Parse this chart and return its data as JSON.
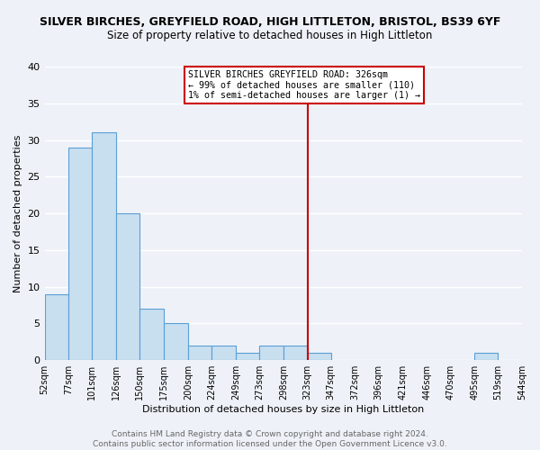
{
  "title": "SILVER BIRCHES, GREYFIELD ROAD, HIGH LITTLETON, BRISTOL, BS39 6YF",
  "subtitle": "Size of property relative to detached houses in High Littleton",
  "xlabel": "Distribution of detached houses by size in High Littleton",
  "ylabel": "Number of detached properties",
  "bin_edges": [
    52,
    77,
    101,
    126,
    150,
    175,
    200,
    224,
    249,
    273,
    298,
    323,
    347,
    372,
    396,
    421,
    446,
    470,
    495,
    519,
    544
  ],
  "bin_counts": [
    9,
    29,
    31,
    20,
    7,
    5,
    2,
    2,
    1,
    2,
    2,
    1,
    0,
    0,
    0,
    0,
    0,
    0,
    1,
    0
  ],
  "bar_color": "#c8dff0",
  "bar_edge_color": "#5a9fd4",
  "vline_x": 323,
  "vline_color": "#cc0000",
  "ylim": [
    0,
    40
  ],
  "xlim": [
    52,
    544
  ],
  "annotation_text_line1": "SILVER BIRCHES GREYFIELD ROAD: 326sqm",
  "annotation_text_line2": "← 99% of detached houses are smaller (110)",
  "annotation_text_line3": "1% of semi-detached houses are larger (1) →",
  "background_color": "#eef2f8",
  "plot_bg_color": "#eef2f8",
  "grid_color": "#ffffff",
  "footer_text": "Contains HM Land Registry data © Crown copyright and database right 2024.\nContains public sector information licensed under the Open Government Licence v3.0.",
  "tick_labels": [
    "52sqm",
    "77sqm",
    "101sqm",
    "126sqm",
    "150sqm",
    "175sqm",
    "200sqm",
    "224sqm",
    "249sqm",
    "273sqm",
    "298sqm",
    "323sqm",
    "347sqm",
    "372sqm",
    "396sqm",
    "421sqm",
    "446sqm",
    "470sqm",
    "495sqm",
    "519sqm",
    "544sqm"
  ],
  "yticks": [
    0,
    5,
    10,
    15,
    20,
    25,
    30,
    35,
    40
  ],
  "title_fontsize": 9,
  "subtitle_fontsize": 8.5,
  "axis_label_fontsize": 8,
  "tick_fontsize": 7,
  "footer_fontsize": 6.5
}
